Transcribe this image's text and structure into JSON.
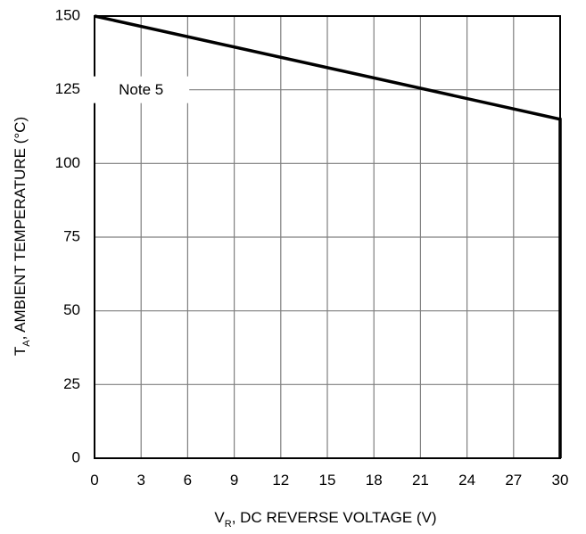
{
  "chart_data": {
    "type": "line",
    "title": "",
    "xlabel": {
      "main": "V",
      "sub": "R",
      "rest": ", DC REVERSE VOLTAGE (V)"
    },
    "ylabel": {
      "main": "T",
      "sub": "A",
      "rest": ", AMBIENT TEMPERATURE (°C)"
    },
    "x_ticks": [
      "0",
      "3",
      "6",
      "9",
      "12",
      "15",
      "18",
      "21",
      "24",
      "27",
      "30"
    ],
    "y_ticks": [
      "0",
      "25",
      "50",
      "75",
      "100",
      "125",
      "150"
    ],
    "xlim": [
      0,
      30
    ],
    "ylim": [
      0,
      150
    ],
    "grid": true,
    "series": [
      {
        "x": [
          0,
          30,
          30
        ],
        "y": [
          150,
          115,
          0
        ]
      }
    ],
    "annotations": [
      {
        "text": "Note 5",
        "x": 3,
        "y": 125
      }
    ],
    "colors": {
      "line": "#000000",
      "grid": "#7f7f7f",
      "frame": "#000000"
    }
  }
}
